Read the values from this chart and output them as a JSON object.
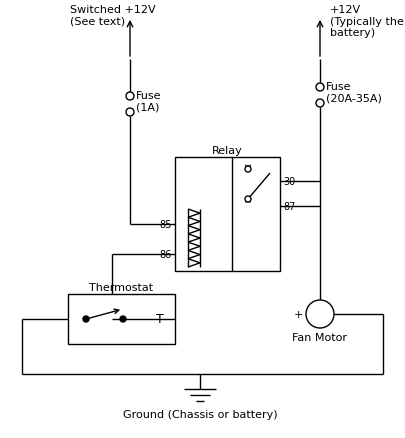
{
  "bg_color": "#ffffff",
  "line_color": "#000000",
  "text_color": "#000000",
  "labels": {
    "switched_12v": "Switched +12V\n(See text)",
    "plus_12v": "+12V\n(Typically the\nbattery)",
    "fuse_1a": "Fuse\n(1A)",
    "fuse_20a": "Fuse\n(20A-35A)",
    "relay": "Relay",
    "pin_85": "85",
    "pin_86": "86",
    "pin_87": "87",
    "pin_30": "30",
    "thermostat_label": "Thermostat",
    "thermostat_T": "T",
    "fan_motor": "Fan Motor",
    "ground": "Ground (Chassis or battery)"
  },
  "figsize": [
    4.06,
    4.39
  ],
  "dpi": 100
}
